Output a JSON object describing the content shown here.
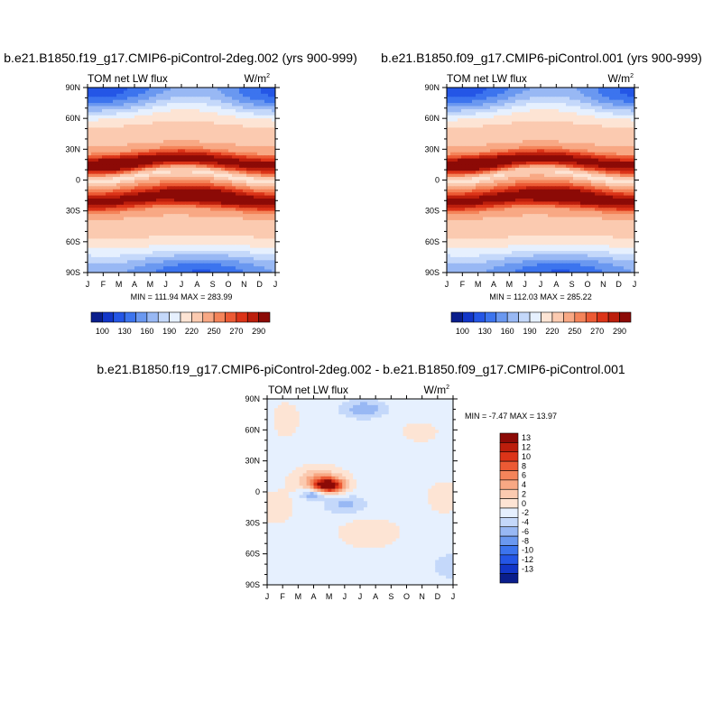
{
  "chart_data": [
    {
      "type": "heatmap",
      "title": "b.e21.B1850.f19_g17.CMIP6-piControl-2deg.002 (yrs 900-999)",
      "variable_label": "TOM net LW flux",
      "units_label": "W/m",
      "units_superscript": "2",
      "x_ticks": [
        "J",
        "F",
        "M",
        "A",
        "M",
        "J",
        "J",
        "A",
        "S",
        "O",
        "N",
        "D",
        "J"
      ],
      "y_ticks": [
        "90N",
        "60N",
        "30N",
        "0",
        "30S",
        "60S",
        "90S"
      ],
      "stats": "MIN = 111.94 MAX = 283.99",
      "min": 111.94,
      "max": 283.99,
      "colorbar_labels": [
        "100",
        "130",
        "160",
        "190",
        "220",
        "250",
        "270",
        "290"
      ],
      "colorbar_levels": [
        100,
        110,
        120,
        130,
        145,
        160,
        175,
        190,
        205,
        220,
        235,
        250,
        260,
        270,
        280,
        290
      ]
    },
    {
      "type": "heatmap",
      "title": "b.e21.B1850.f09_g17.CMIP6-piControl.001 (yrs 900-999)",
      "variable_label": "TOM net LW flux",
      "units_label": "W/m",
      "units_superscript": "2",
      "x_ticks": [
        "J",
        "F",
        "M",
        "A",
        "M",
        "J",
        "J",
        "A",
        "S",
        "O",
        "N",
        "D",
        "J"
      ],
      "y_ticks": [
        "90N",
        "60N",
        "30N",
        "0",
        "30S",
        "60S",
        "90S"
      ],
      "stats": "MIN = 112.03 MAX = 285.22",
      "min": 112.03,
      "max": 285.22,
      "colorbar_labels": [
        "100",
        "130",
        "160",
        "190",
        "220",
        "250",
        "270",
        "290"
      ],
      "colorbar_levels": [
        100,
        110,
        120,
        130,
        145,
        160,
        175,
        190,
        205,
        220,
        235,
        250,
        260,
        270,
        280,
        290
      ]
    },
    {
      "type": "heatmap",
      "title": "b.e21.B1850.f19_g17.CMIP6-piControl-2deg.002 - b.e21.B1850.f09_g17.CMIP6-piControl.001",
      "variable_label": "TOM net LW flux",
      "units_label": "W/m",
      "units_superscript": "2",
      "x_ticks": [
        "J",
        "F",
        "M",
        "A",
        "M",
        "J",
        "J",
        "A",
        "S",
        "O",
        "N",
        "D",
        "J"
      ],
      "y_ticks": [
        "90N",
        "60N",
        "30N",
        "0",
        "30S",
        "60S",
        "90S"
      ],
      "stats": "MIN =  -7.47 MAX =  13.97",
      "min": -7.47,
      "max": 13.97,
      "colorbar_labels": [
        "13",
        "12",
        "10",
        "8",
        "6",
        "4",
        "2",
        "0",
        "-2",
        "-4",
        "-6",
        "-8",
        "-10",
        "-12",
        "-13"
      ],
      "colorbar_levels": [
        -13,
        -12,
        -10,
        -8,
        -6,
        -4,
        -2,
        0,
        2,
        4,
        6,
        8,
        10,
        12,
        13
      ]
    }
  ],
  "colors": {
    "palette": [
      "#0a1e8c",
      "#1236c8",
      "#2456e6",
      "#3c74ee",
      "#6a98f0",
      "#98b8f4",
      "#c4d8fa",
      "#e6f0fe",
      "#fde4d4",
      "#fbcab0",
      "#f8a884",
      "#f4845a",
      "#ec5a34",
      "#dc3418",
      "#bc1e0c",
      "#8c0a06"
    ]
  }
}
